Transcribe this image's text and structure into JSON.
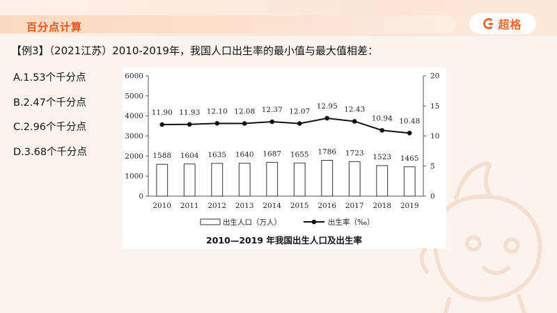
{
  "header": {
    "section_title": "百分点计算",
    "logo_text": "超格",
    "accent_color": "#e5541a"
  },
  "question": {
    "text": "【例3】（2021江苏）2010-2019年，我国人口出生率的最小值与最大值相差：",
    "options": [
      "A.1.53个千分点",
      "B.2.47个千分点",
      "C.2.96个千分点",
      "D.3.68个千分点"
    ]
  },
  "chart_data": {
    "type": "bar",
    "title": "2010—2019 年我国出生人口及出生率",
    "categories": [
      "2010",
      "2011",
      "2012",
      "2013",
      "2014",
      "2015",
      "2016",
      "2017",
      "2018",
      "2019"
    ],
    "series": [
      {
        "name": "出生人口（万人）",
        "type": "bar",
        "axis": "left",
        "values": [
          1588,
          1604,
          1635,
          1640,
          1687,
          1655,
          1786,
          1723,
          1523,
          1465
        ],
        "labels": [
          "1588",
          "1604",
          "1635",
          "1640",
          "1687",
          "1655",
          "1786",
          "1723",
          "1523",
          "1465"
        ]
      },
      {
        "name": "出生率（‰）",
        "type": "line",
        "axis": "right",
        "values": [
          11.9,
          11.93,
          12.1,
          12.08,
          12.37,
          12.07,
          12.95,
          12.43,
          10.94,
          10.48
        ],
        "labels": [
          "11.90",
          "11.93",
          "12.10",
          "12.08",
          "12.37",
          "12.07",
          "12.95",
          "12.43",
          "10.94",
          "10.48"
        ]
      }
    ],
    "y_left": {
      "min": 0,
      "max": 6000,
      "ticks": [
        "0",
        "1000",
        "2000",
        "3000",
        "4000",
        "5000",
        "6000"
      ]
    },
    "y_right": {
      "min": 0,
      "max": 20,
      "ticks": [
        "0",
        "5",
        "10",
        "15",
        "20"
      ]
    },
    "legend_position": "bottom",
    "grid": false
  }
}
